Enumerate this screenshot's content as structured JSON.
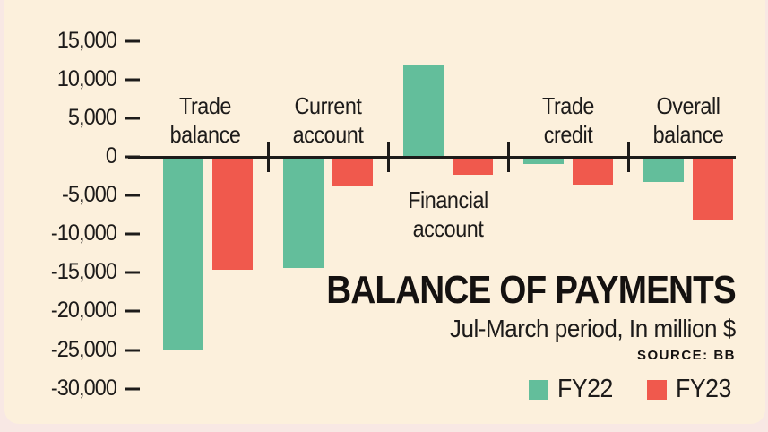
{
  "page": {
    "background_color": "#F8E8E4",
    "card_color": "#FCF0DC"
  },
  "chart_data": {
    "type": "bar",
    "title": "BALANCE OF PAYMENTS",
    "subtitle": "Jul-March period, In million $",
    "source": "SOURCE: BB",
    "unit": "million $",
    "categories": [
      "Trade balance",
      "Current account",
      "Financial account",
      "Trade credit",
      "Overall balance"
    ],
    "series": [
      {
        "name": "FY22",
        "color": "#63BE9B",
        "values": [
          -24900,
          -14400,
          11900,
          -900,
          -3200
        ]
      },
      {
        "name": "FY23",
        "color": "#F0594D",
        "values": [
          -14600,
          -3700,
          -2300,
          -3600,
          -8200
        ]
      }
    ],
    "ylim": [
      -30000,
      15000
    ],
    "ytick_step": 5000,
    "yticks": [
      15000,
      10000,
      5000,
      0,
      -5000,
      -10000,
      -15000,
      -20000,
      -25000,
      -30000
    ],
    "ytick_labels": [
      "15,000",
      "10,000",
      "5,000",
      "0",
      "-5,000",
      "-10,000",
      "-15,000",
      "-20,000",
      "-25,000",
      "-30,000"
    ],
    "grid": false,
    "legend_position": "bottom-right",
    "axis_color": "#1D1B1A",
    "text_color": "#1D1B1A"
  }
}
